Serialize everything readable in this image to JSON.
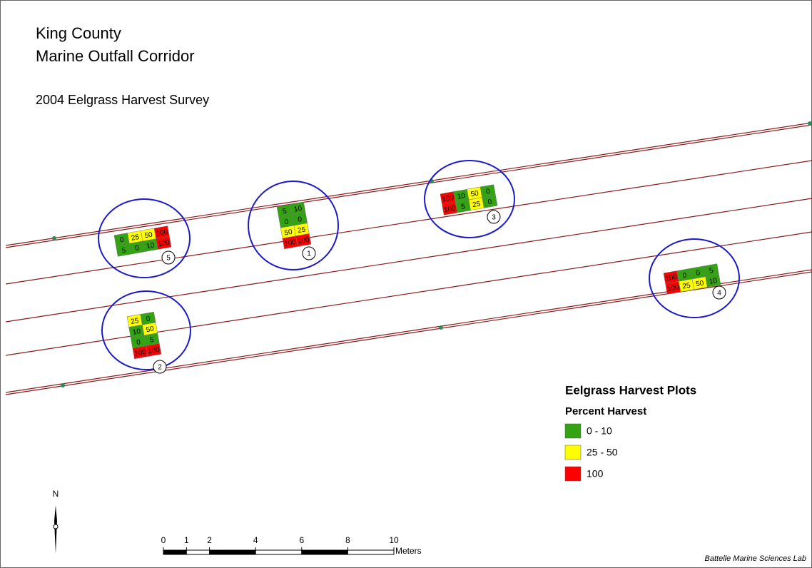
{
  "header": {
    "title_line_1": "King County",
    "title_line_2": "Marine Outfall Corridor",
    "subtitle": "2004 Eelgrass Harvest Survey"
  },
  "plots": [
    {
      "label": "5",
      "rows": [
        [
          {
            "value": 0,
            "color": "#33a313"
          },
          {
            "value": 25,
            "color": "#ffff00"
          },
          {
            "value": 50,
            "color": "#ffff00"
          },
          {
            "value": 100,
            "color": "#ff0000"
          }
        ],
        [
          {
            "value": 5,
            "color": "#33a313"
          },
          {
            "value": 0,
            "color": "#33a313"
          },
          {
            "value": 10,
            "color": "#33a313"
          },
          {
            "value": 100,
            "color": "#ff0000"
          }
        ]
      ]
    },
    {
      "label": "1",
      "rows": [
        [
          {
            "value": 5,
            "color": "#33a313"
          },
          {
            "value": 10,
            "color": "#33a313"
          }
        ],
        [
          {
            "value": 0,
            "color": "#33a313"
          },
          {
            "value": 0,
            "color": "#33a313"
          }
        ],
        [
          {
            "value": 50,
            "color": "#ffff00"
          },
          {
            "value": 25,
            "color": "#ffff00"
          }
        ],
        [
          {
            "value": 100,
            "color": "#ff0000"
          },
          {
            "value": 100,
            "color": "#ff0000"
          }
        ]
      ]
    },
    {
      "label": "3",
      "rows": [
        [
          {
            "value": 100,
            "color": "#ff0000"
          },
          {
            "value": 10,
            "color": "#33a313"
          },
          {
            "value": 50,
            "color": "#ffff00"
          },
          {
            "value": 0,
            "color": "#33a313"
          }
        ],
        [
          {
            "value": 100,
            "color": "#ff0000"
          },
          {
            "value": 5,
            "color": "#33a313"
          },
          {
            "value": 25,
            "color": "#ffff00"
          },
          {
            "value": 0,
            "color": "#33a313"
          }
        ]
      ]
    },
    {
      "label": "4",
      "rows": [
        [
          {
            "value": 100,
            "color": "#ff0000"
          },
          {
            "value": 0,
            "color": "#33a313"
          },
          {
            "value": 0,
            "color": "#33a313"
          },
          {
            "value": 5,
            "color": "#33a313"
          }
        ],
        [
          {
            "value": 100,
            "color": "#ff0000"
          },
          {
            "value": 25,
            "color": "#ffff00"
          },
          {
            "value": 50,
            "color": "#ffff00"
          },
          {
            "value": 10,
            "color": "#33a313"
          }
        ]
      ]
    },
    {
      "label": "2",
      "rows": [
        [
          {
            "value": 25,
            "color": "#ffff00"
          },
          {
            "value": 0,
            "color": "#33a313"
          }
        ],
        [
          {
            "value": 10,
            "color": "#33a313"
          },
          {
            "value": 50,
            "color": "#ffff00"
          }
        ],
        [
          {
            "value": 0,
            "color": "#33a313"
          },
          {
            "value": 5,
            "color": "#33a313"
          }
        ],
        [
          {
            "value": 100,
            "color": "#ff0000"
          },
          {
            "value": 100,
            "color": "#ff0000"
          }
        ]
      ]
    }
  ],
  "legend": {
    "title": "Eelgrass Harvest Plots",
    "subtitle": "Percent Harvest",
    "items": [
      {
        "label": "0 - 10",
        "color": "#33a313"
      },
      {
        "label": "25 - 50",
        "color": "#ffff00"
      },
      {
        "label": "100",
        "color": "#ff0000"
      }
    ]
  },
  "north_arrow": {
    "label": "N"
  },
  "scale_bar": {
    "ticks": [
      0,
      1,
      2,
      4,
      6,
      8,
      10
    ],
    "unit": "Meters"
  },
  "credit": "Battelle Marine Sciences Lab"
}
